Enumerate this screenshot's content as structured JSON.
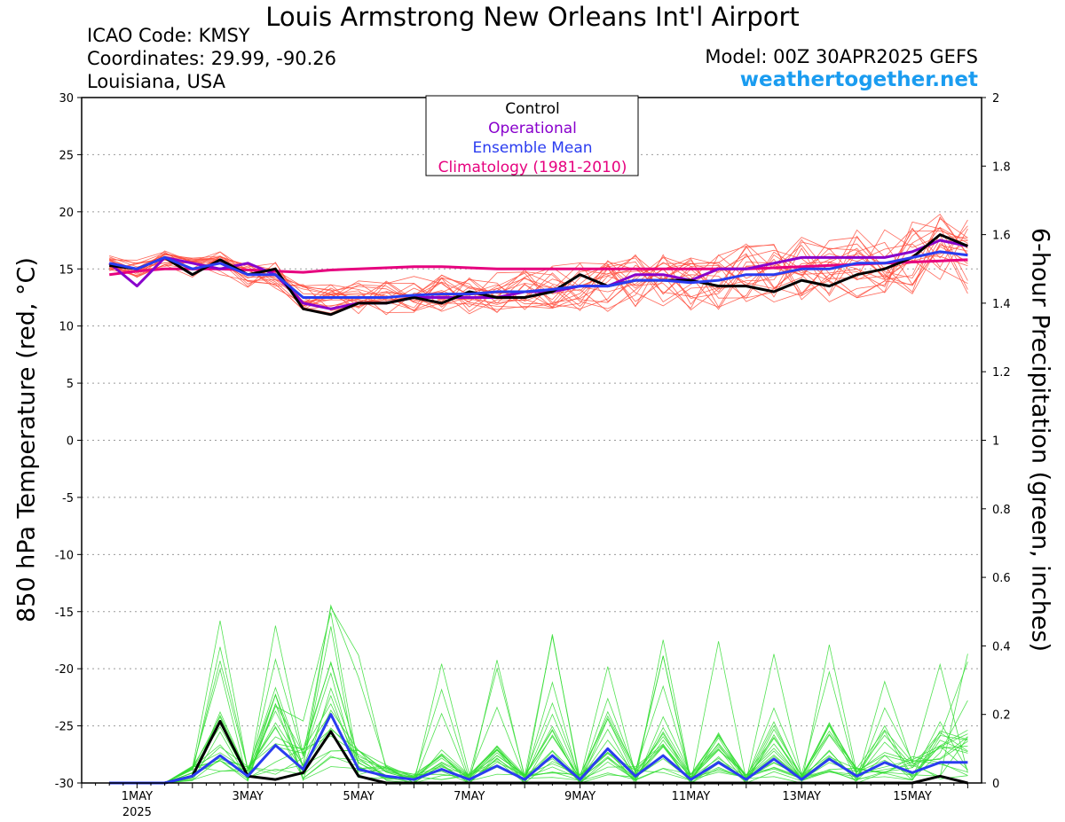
{
  "header": {
    "title": "Louis Armstrong New Orleans Int'l Airport",
    "icao": "ICAO Code: KMSY",
    "coords": "Coordinates: 29.99, -90.26",
    "region": "Louisiana, USA",
    "model": "Model: 00Z 30APR2025 GEFS",
    "site": "weathertogether.net"
  },
  "chart_data": {
    "type": "line",
    "ylabel_left": "850 hPa Temperature (red, °C)",
    "ylabel_right": "6-hour Precipitation (green, inches)",
    "ylim_left": [
      -30,
      30
    ],
    "ylim_right": [
      0,
      2
    ],
    "yticks_left": [
      "30",
      "25",
      "20",
      "15",
      "10",
      "5",
      "0",
      "-5",
      "-10",
      "-15",
      "-20",
      "-25",
      "-30"
    ],
    "yticks_right": [
      "2",
      "1.8",
      "1.6",
      "1.4",
      "1.2",
      "1",
      "0.8",
      "0.6",
      "0.4",
      "0.2",
      "0"
    ],
    "x_range": [
      "2025-04-30 00Z",
      "2025-05-16 06Z"
    ],
    "x_ticks": [
      {
        "label": "1MAY",
        "sub": "2025",
        "day": 1
      },
      {
        "label": "3MAY",
        "day": 3
      },
      {
        "label": "5MAY",
        "day": 5
      },
      {
        "label": "7MAY",
        "day": 7
      },
      {
        "label": "9MAY",
        "day": 9
      },
      {
        "label": "11MAY",
        "day": 11
      },
      {
        "label": "13MAY",
        "day": 13
      },
      {
        "label": "15MAY",
        "day": 15
      }
    ],
    "grid": "dotted horizontal",
    "legend": {
      "placement": "top-center",
      "entries": [
        {
          "name": "Control",
          "color": "#000000"
        },
        {
          "name": "Operational",
          "color": "#8800cc"
        },
        {
          "name": "Ensemble Mean",
          "color": "#2a3cf0"
        },
        {
          "name": "Climatology (1981-2010)",
          "color": "#e6007e"
        }
      ]
    },
    "colors": {
      "temp_members": "#ff4d3d",
      "precip_members": "#33dd33",
      "control": "#000000",
      "operational": "#8800cc",
      "mean": "#2a3cf0",
      "climatology": "#e6007e"
    },
    "x_day": [
      0.5,
      1,
      1.5,
      2,
      2.5,
      3,
      3.5,
      4,
      4.5,
      5,
      5.5,
      6,
      6.5,
      7,
      7.5,
      8,
      8.5,
      9,
      9.5,
      10,
      10.5,
      11,
      11.5,
      12,
      12.5,
      13,
      13.5,
      14,
      14.5,
      15,
      15.5,
      16
    ],
    "series": [
      {
        "name": "Control",
        "axis": "temp",
        "values": [
          15.3,
          15.0,
          16.0,
          14.5,
          15.8,
          14.5,
          15.0,
          11.5,
          11.0,
          12.0,
          12.0,
          12.5,
          12.0,
          13.0,
          12.5,
          12.5,
          13.0,
          14.5,
          13.5,
          14.0,
          14.0,
          14.0,
          13.5,
          13.5,
          13.0,
          14.0,
          13.5,
          14.5,
          15.0,
          16.0,
          18.0,
          17.0
        ]
      },
      {
        "name": "Operational",
        "axis": "temp",
        "values": [
          15.5,
          13.5,
          16.0,
          15.5,
          15.0,
          15.5,
          14.5,
          12.0,
          11.5,
          12.0,
          12.0,
          12.5,
          12.5,
          12.5,
          12.5,
          13.0,
          13.0,
          13.5,
          13.5,
          14.5,
          14.5,
          14.0,
          15.0,
          15.0,
          15.5,
          16.0,
          16.0,
          16.0,
          16.0,
          16.5,
          17.5,
          17.0
        ]
      },
      {
        "name": "Ensemble Mean",
        "axis": "temp",
        "values": [
          15.5,
          15.0,
          16.0,
          15.0,
          15.5,
          14.5,
          14.5,
          12.5,
          12.5,
          12.5,
          12.5,
          12.7,
          12.8,
          12.8,
          13.0,
          13.0,
          13.2,
          13.5,
          13.5,
          14.0,
          14.0,
          13.8,
          14.0,
          14.5,
          14.5,
          15.0,
          15.0,
          15.5,
          15.5,
          16.0,
          16.5,
          16.2
        ]
      },
      {
        "name": "Climatology (1981-2010)",
        "axis": "temp",
        "values": [
          14.5,
          14.8,
          15.0,
          15.0,
          15.0,
          14.9,
          14.8,
          14.7,
          14.9,
          15.0,
          15.1,
          15.2,
          15.2,
          15.1,
          15.0,
          15.0,
          15.0,
          15.0,
          15.0,
          15.0,
          15.0,
          15.0,
          15.0,
          15.0,
          15.1,
          15.2,
          15.3,
          15.4,
          15.5,
          15.6,
          15.7,
          15.8
        ]
      },
      {
        "name": "Control",
        "axis": "precip",
        "values": [
          0,
          0,
          0,
          0.02,
          0.18,
          0.02,
          0.01,
          0.03,
          0.15,
          0.02,
          0,
          0,
          0,
          0,
          0,
          0,
          0,
          0,
          0,
          0,
          0,
          0,
          0,
          0,
          0,
          0,
          0,
          0,
          0,
          0,
          0.02,
          0
        ]
      },
      {
        "name": "Ensemble Mean",
        "axis": "precip",
        "values": [
          0,
          0,
          0,
          0.02,
          0.08,
          0.02,
          0.11,
          0.04,
          0.2,
          0.04,
          0.02,
          0.01,
          0.04,
          0.01,
          0.05,
          0.01,
          0.08,
          0.01,
          0.1,
          0.02,
          0.08,
          0.01,
          0.06,
          0.01,
          0.07,
          0.01,
          0.07,
          0.02,
          0.06,
          0.03,
          0.06,
          0.06
        ]
      }
    ]
  }
}
